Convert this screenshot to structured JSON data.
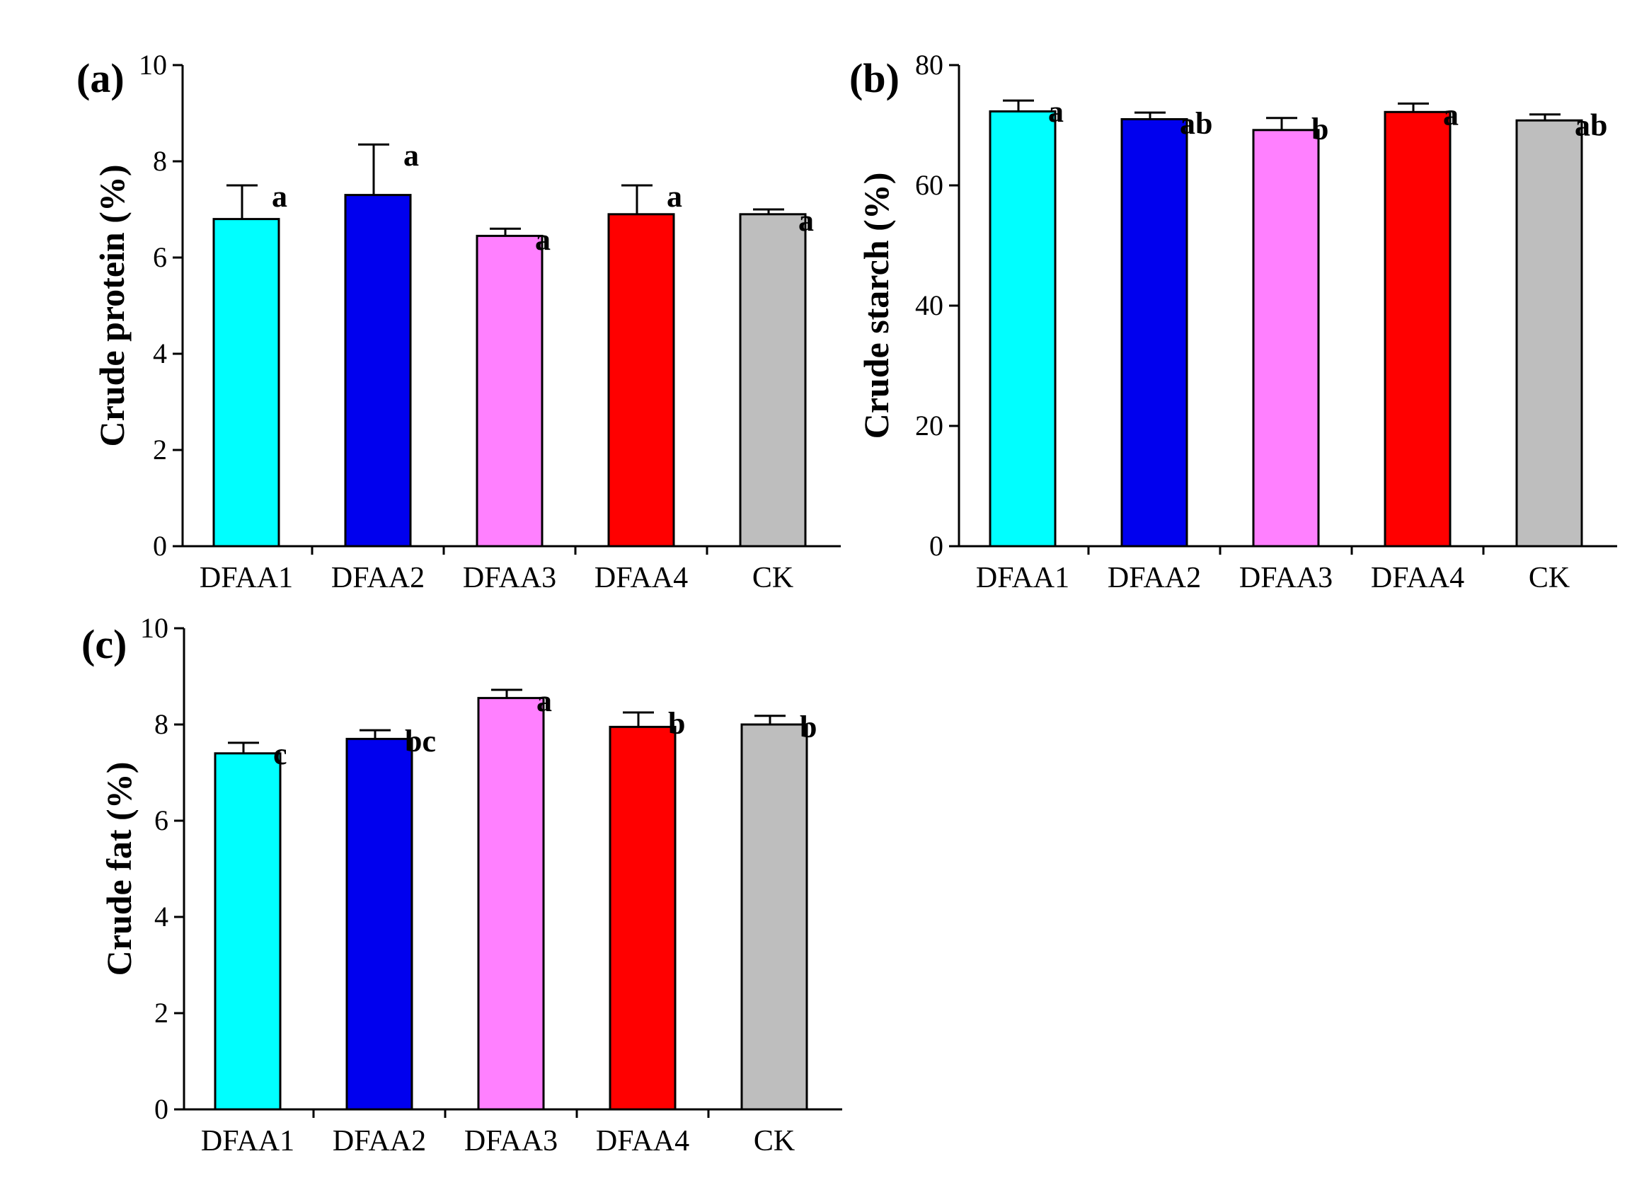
{
  "chart_data": [
    {
      "type": "bar",
      "panel": "(a)",
      "ylabel": "Crude protein (%)",
      "ylim": [
        0,
        10
      ],
      "yticks": [
        0,
        2,
        4,
        6,
        8,
        10
      ],
      "categories": [
        "DFAA1",
        "DFAA2",
        "DFAA3",
        "DFAA4",
        "CK"
      ],
      "values": [
        6.8,
        7.3,
        6.45,
        6.9,
        6.9
      ],
      "errors": [
        0.7,
        1.05,
        0.15,
        0.6,
        0.1
      ],
      "significance": [
        "a",
        "a",
        "a",
        "a",
        "a"
      ],
      "colors": [
        "#00FFFF",
        "#0000EE",
        "#FF80FF",
        "#FF0000",
        "#BEBEBE"
      ]
    },
    {
      "type": "bar",
      "panel": "(b)",
      "ylabel": "Crude starch (%)",
      "ylim": [
        0,
        80
      ],
      "yticks": [
        0,
        20,
        40,
        60,
        80
      ],
      "categories": [
        "DFAA1",
        "DFAA2",
        "DFAA3",
        "DFAA4",
        "CK"
      ],
      "values": [
        72.3,
        71.0,
        69.2,
        72.2,
        70.8
      ],
      "errors": [
        1.8,
        1.1,
        2.0,
        1.4,
        1.0
      ],
      "significance": [
        "a",
        "ab",
        "b",
        "a",
        "ab"
      ],
      "colors": [
        "#00FFFF",
        "#0000EE",
        "#FF80FF",
        "#FF0000",
        "#BEBEBE"
      ]
    },
    {
      "type": "bar",
      "panel": "(c)",
      "ylabel": "Crude fat (%)",
      "ylim": [
        0,
        10
      ],
      "yticks": [
        0,
        2,
        4,
        6,
        8,
        10
      ],
      "categories": [
        "DFAA1",
        "DFAA2",
        "DFAA3",
        "DFAA4",
        "CK"
      ],
      "values": [
        7.4,
        7.7,
        8.55,
        7.95,
        8.0
      ],
      "errors": [
        0.22,
        0.18,
        0.17,
        0.3,
        0.18
      ],
      "significance": [
        "c",
        "bc",
        "a",
        "b",
        "b"
      ],
      "colors": [
        "#00FFFF",
        "#0000EE",
        "#FF80FF",
        "#FF0000",
        "#BEBEBE"
      ]
    }
  ]
}
